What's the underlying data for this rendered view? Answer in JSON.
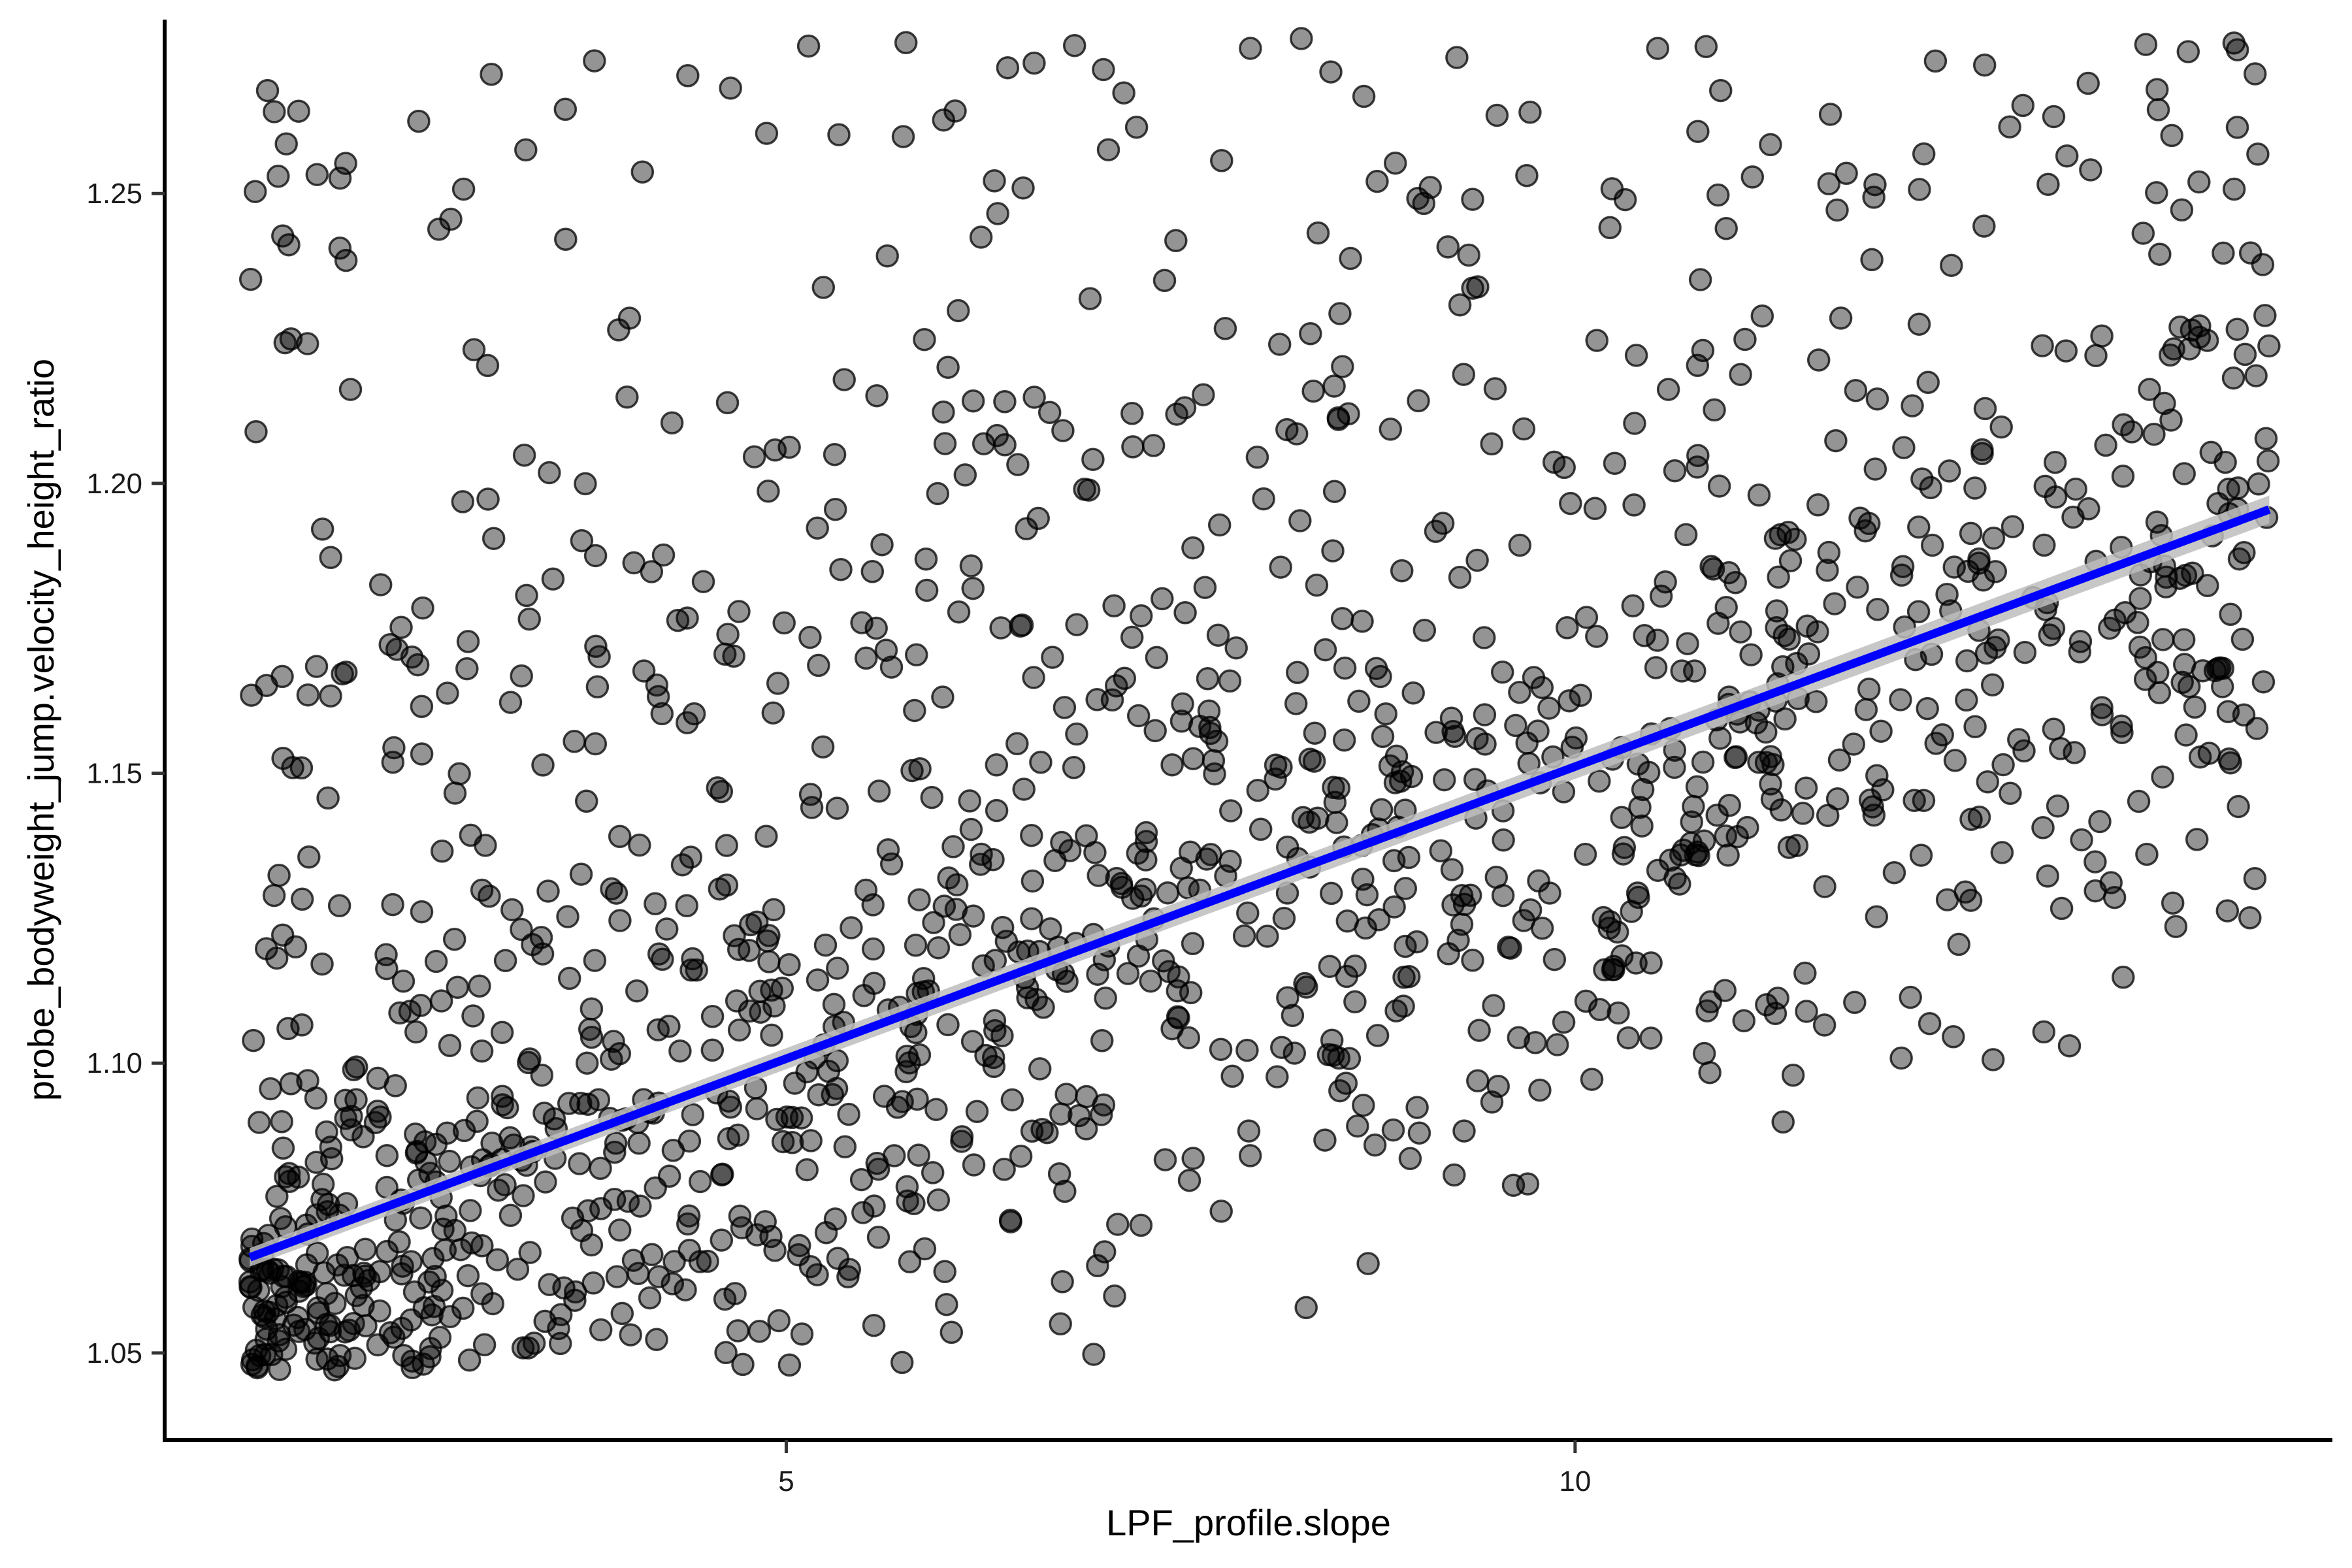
{
  "chart_data": {
    "type": "scatter",
    "title": "",
    "xlabel": "LPF_profile.slope",
    "ylabel": "probe_bodyweight_jump.velocity_height_ratio",
    "xlim": [
      1.06,
      14.8
    ],
    "ylim": [
      1.035,
      1.28
    ],
    "x_ticks": [
      5,
      10
    ],
    "x_tick_labels": [
      "5",
      "10"
    ],
    "y_ticks": [
      1.05,
      1.1,
      1.15,
      1.2,
      1.25
    ],
    "y_tick_labels": [
      "1.05",
      "1.10",
      "1.15",
      "1.20",
      "1.25"
    ],
    "grid": false,
    "legend": "none",
    "point_count": 1500,
    "point_generation": {
      "x_range": [
        1.6,
        14.4
      ],
      "y_floor": 1.047,
      "y_ceiling": 1.277,
      "seed": 20240517
    },
    "regression_line": {
      "x": [
        1.6,
        14.4
      ],
      "y": [
        1.0665,
        1.1955
      ],
      "confidence_band_halfwidth": [
        0.0016,
        0.0008
      ]
    },
    "colors": {
      "points_fill": "rgba(0,0,0,0.42)",
      "points_stroke": "rgba(0,0,0,0.75)",
      "line": "#0000ff",
      "band": "#bdbdbd"
    }
  }
}
